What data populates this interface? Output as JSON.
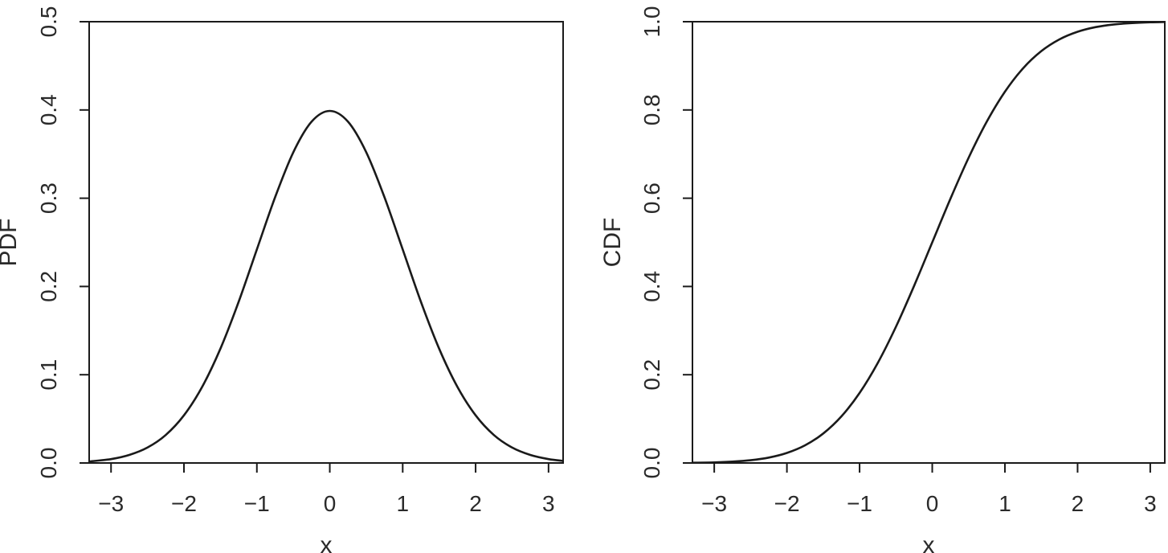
{
  "chart_data": [
    {
      "type": "line",
      "xlabel": "x",
      "ylabel": "PDF",
      "xlim": [
        -3.3,
        3.2
      ],
      "ylim": [
        0,
        0.5
      ],
      "xticks": [
        -3,
        -2,
        -1,
        0,
        1,
        2,
        3
      ],
      "xtick_labels": [
        "−3",
        "−2",
        "−1",
        "0",
        "1",
        "2",
        "3"
      ],
      "yticks": [
        0,
        0.1,
        0.2,
        0.3,
        0.4,
        0.5
      ],
      "ytick_labels": [
        "0.0",
        "0.1",
        "0.2",
        "0.3",
        "0.4",
        "0.5"
      ],
      "grid": false,
      "series": [
        {
          "color": "#1a1a1a",
          "x": [
            -3.3,
            -3.0,
            -2.75,
            -2.5,
            -2.25,
            -2.0,
            -1.75,
            -1.5,
            -1.25,
            -1.0,
            -0.75,
            -0.5,
            -0.25,
            0.0,
            0.25,
            0.5,
            0.75,
            1.0,
            1.25,
            1.5,
            1.75,
            2.0,
            2.25,
            2.5,
            2.75,
            3.0,
            3.2
          ],
          "y": [
            0.0017,
            0.0044,
            0.0091,
            0.0175,
            0.0317,
            0.054,
            0.0863,
            0.1295,
            0.1826,
            0.242,
            0.3011,
            0.3521,
            0.3867,
            0.3989,
            0.3867,
            0.3521,
            0.3011,
            0.242,
            0.1826,
            0.1295,
            0.0863,
            0.054,
            0.0317,
            0.0175,
            0.0091,
            0.0044,
            0.0024
          ]
        }
      ]
    },
    {
      "type": "line",
      "xlabel": "x",
      "ylabel": "CDF",
      "xlim": [
        -3.3,
        3.2
      ],
      "ylim": [
        0,
        1.0
      ],
      "xticks": [
        -3,
        -2,
        -1,
        0,
        1,
        2,
        3
      ],
      "xtick_labels": [
        "−3",
        "−2",
        "−1",
        "0",
        "1",
        "2",
        "3"
      ],
      "yticks": [
        0,
        0.2,
        0.4,
        0.6,
        0.8,
        1.0
      ],
      "ytick_labels": [
        "0.0",
        "0.2",
        "0.4",
        "0.6",
        "0.8",
        "1.0"
      ],
      "grid": false,
      "series": [
        {
          "color": "#1a1a1a",
          "x": [
            -3.3,
            -3.0,
            -2.75,
            -2.5,
            -2.25,
            -2.0,
            -1.75,
            -1.5,
            -1.25,
            -1.0,
            -0.75,
            -0.5,
            -0.25,
            0.0,
            0.25,
            0.5,
            0.75,
            1.0,
            1.25,
            1.5,
            1.75,
            2.0,
            2.25,
            2.5,
            2.75,
            3.0,
            3.2
          ],
          "y": [
            0.0005,
            0.0013,
            0.003,
            0.0062,
            0.0122,
            0.0228,
            0.0401,
            0.0668,
            0.1056,
            0.1587,
            0.2266,
            0.3085,
            0.4013,
            0.5,
            0.5987,
            0.6915,
            0.7734,
            0.8413,
            0.8944,
            0.9332,
            0.9599,
            0.9772,
            0.9878,
            0.9938,
            0.997,
            0.9987,
            0.9993
          ]
        }
      ]
    }
  ]
}
